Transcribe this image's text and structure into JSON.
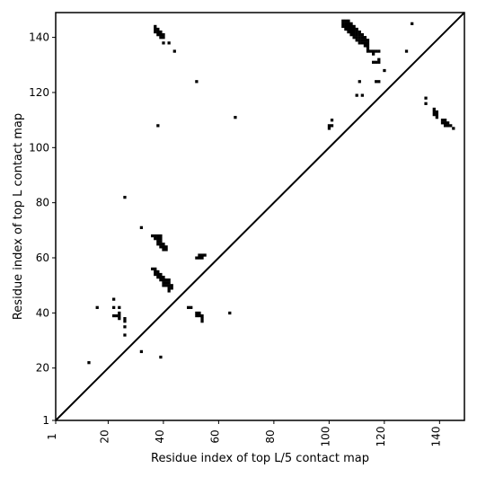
{
  "chart_data": {
    "type": "scatter",
    "xlabel": "Residue index of top L/5 contact map",
    "ylabel": "Residue index of top L contact map",
    "xlim": [
      1,
      149
    ],
    "ylim": [
      1,
      149
    ],
    "x_ticks": [
      1,
      20,
      40,
      60,
      80,
      100,
      120,
      140
    ],
    "y_ticks": [
      1,
      20,
      40,
      60,
      80,
      100,
      120,
      140
    ],
    "x_tick_rotation": -90,
    "diagonal": true,
    "marker": "square",
    "color": "#000000",
    "series": [
      {
        "points": [
          [
            13,
            22
          ],
          [
            16,
            42
          ],
          [
            22,
            45
          ],
          [
            22,
            42
          ],
          [
            22,
            39
          ],
          [
            23,
            39
          ],
          [
            24,
            42
          ],
          [
            24,
            40
          ],
          [
            24,
            39
          ],
          [
            24,
            38
          ],
          [
            26,
            38
          ],
          [
            26,
            37
          ],
          [
            26,
            35
          ],
          [
            26,
            32
          ],
          [
            26,
            82
          ],
          [
            32,
            71
          ],
          [
            32,
            26
          ],
          [
            39,
            24
          ],
          [
            37,
            144
          ],
          [
            37,
            143
          ],
          [
            37,
            142
          ],
          [
            38,
            143
          ],
          [
            38,
            142
          ],
          [
            38,
            141
          ],
          [
            39,
            142
          ],
          [
            39,
            141
          ],
          [
            39,
            140
          ],
          [
            40,
            141
          ],
          [
            40,
            140
          ],
          [
            40,
            138
          ],
          [
            42,
            138
          ],
          [
            44,
            135
          ],
          [
            38,
            108
          ],
          [
            36,
            68
          ],
          [
            37,
            68
          ],
          [
            38,
            68
          ],
          [
            39,
            68
          ],
          [
            37,
            67
          ],
          [
            38,
            67
          ],
          [
            39,
            67
          ],
          [
            38,
            66
          ],
          [
            39,
            66
          ],
          [
            38,
            65
          ],
          [
            39,
            65
          ],
          [
            40,
            65
          ],
          [
            39,
            64
          ],
          [
            40,
            64
          ],
          [
            40,
            63
          ],
          [
            41,
            64
          ],
          [
            41,
            63
          ],
          [
            36,
            56
          ],
          [
            37,
            56
          ],
          [
            37,
            55
          ],
          [
            38,
            55
          ],
          [
            37,
            54
          ],
          [
            38,
            54
          ],
          [
            39,
            54
          ],
          [
            38,
            53
          ],
          [
            39,
            53
          ],
          [
            40,
            53
          ],
          [
            39,
            52
          ],
          [
            40,
            52
          ],
          [
            41,
            52
          ],
          [
            42,
            52
          ],
          [
            40,
            51
          ],
          [
            41,
            51
          ],
          [
            42,
            51
          ],
          [
            40,
            50
          ],
          [
            41,
            50
          ],
          [
            42,
            50
          ],
          [
            43,
            50
          ],
          [
            42,
            49
          ],
          [
            43,
            49
          ],
          [
            42,
            48
          ],
          [
            49,
            42
          ],
          [
            50,
            42
          ],
          [
            52,
            40
          ],
          [
            53,
            40
          ],
          [
            52,
            39
          ],
          [
            53,
            39
          ],
          [
            54,
            39
          ],
          [
            54,
            38
          ],
          [
            54,
            37
          ],
          [
            64,
            40
          ],
          [
            52,
            60
          ],
          [
            53,
            60
          ],
          [
            54,
            60
          ],
          [
            53,
            61
          ],
          [
            54,
            61
          ],
          [
            55,
            61
          ],
          [
            52,
            124
          ],
          [
            66,
            111
          ],
          [
            100,
            108
          ],
          [
            100,
            107
          ],
          [
            101,
            110
          ],
          [
            101,
            108
          ],
          [
            105,
            146
          ],
          [
            106,
            146
          ],
          [
            107,
            146
          ],
          [
            105,
            145
          ],
          [
            106,
            145
          ],
          [
            107,
            145
          ],
          [
            108,
            145
          ],
          [
            105,
            144
          ],
          [
            106,
            144
          ],
          [
            107,
            144
          ],
          [
            108,
            144
          ],
          [
            109,
            144
          ],
          [
            106,
            143
          ],
          [
            107,
            143
          ],
          [
            108,
            143
          ],
          [
            109,
            143
          ],
          [
            110,
            143
          ],
          [
            107,
            142
          ],
          [
            108,
            142
          ],
          [
            109,
            142
          ],
          [
            110,
            142
          ],
          [
            111,
            142
          ],
          [
            108,
            141
          ],
          [
            109,
            141
          ],
          [
            110,
            141
          ],
          [
            111,
            141
          ],
          [
            112,
            141
          ],
          [
            109,
            140
          ],
          [
            110,
            140
          ],
          [
            111,
            140
          ],
          [
            112,
            140
          ],
          [
            113,
            140
          ],
          [
            110,
            139
          ],
          [
            111,
            139
          ],
          [
            112,
            139
          ],
          [
            113,
            139
          ],
          [
            114,
            139
          ],
          [
            111,
            138
          ],
          [
            112,
            138
          ],
          [
            113,
            138
          ],
          [
            114,
            138
          ],
          [
            113,
            137
          ],
          [
            114,
            137
          ],
          [
            114,
            136
          ],
          [
            114,
            135
          ],
          [
            115,
            135
          ],
          [
            116,
            135
          ],
          [
            117,
            135
          ],
          [
            118,
            135
          ],
          [
            116,
            134
          ],
          [
            116,
            131
          ],
          [
            117,
            131
          ],
          [
            118,
            131
          ],
          [
            118,
            132
          ],
          [
            120,
            128
          ],
          [
            117,
            124
          ],
          [
            118,
            124
          ],
          [
            111,
            124
          ],
          [
            110,
            119
          ],
          [
            112,
            119
          ],
          [
            128,
            135
          ],
          [
            130,
            145
          ],
          [
            135,
            118
          ],
          [
            135,
            116
          ],
          [
            138,
            114
          ],
          [
            138,
            113
          ],
          [
            139,
            113
          ],
          [
            138,
            112
          ],
          [
            139,
            112
          ],
          [
            139,
            111
          ],
          [
            141,
            110
          ],
          [
            142,
            110
          ],
          [
            141,
            109
          ],
          [
            142,
            109
          ],
          [
            143,
            109
          ],
          [
            142,
            108
          ],
          [
            143,
            108
          ],
          [
            144,
            108
          ],
          [
            145,
            107
          ]
        ]
      }
    ]
  }
}
